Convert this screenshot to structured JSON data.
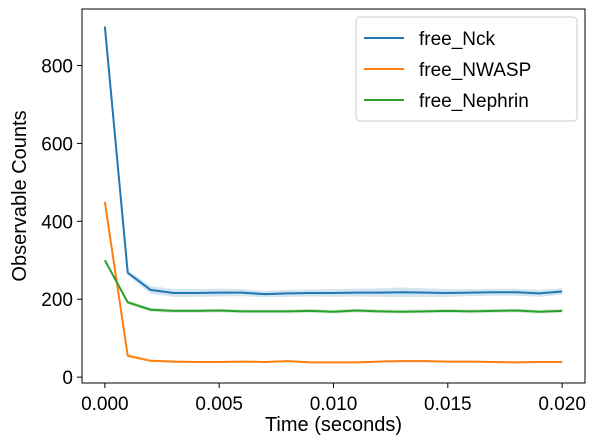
{
  "chart_data": {
    "type": "line",
    "title": "",
    "xlabel": "Time (seconds)",
    "ylabel": "Observable Counts",
    "xlim": [
      -0.001,
      0.021
    ],
    "ylim": [
      -15,
      945
    ],
    "xticks": [
      0.0,
      0.005,
      0.01,
      0.015,
      0.02
    ],
    "xtick_labels": [
      "0.000",
      "0.005",
      "0.010",
      "0.015",
      "0.020"
    ],
    "yticks": [
      0,
      200,
      400,
      600,
      800
    ],
    "ytick_labels": [
      "0",
      "200",
      "400",
      "600",
      "800"
    ],
    "grid": false,
    "legend_position": "top-right",
    "x": [
      0.0,
      0.001,
      0.002,
      0.003,
      0.004,
      0.005,
      0.006,
      0.007,
      0.008,
      0.009,
      0.01,
      0.011,
      0.012,
      0.013,
      0.014,
      0.015,
      0.016,
      0.017,
      0.018,
      0.019,
      0.02
    ],
    "series": [
      {
        "name": "free_Nck",
        "color": "#1f77b4",
        "values": [
          900,
          268,
          224,
          216,
          216,
          217,
          217,
          213,
          215,
          216,
          216,
          217,
          217,
          218,
          217,
          216,
          217,
          218,
          218,
          215,
          220
        ],
        "band": [
          10,
          6,
          10,
          10,
          10,
          10,
          9,
          8,
          9,
          9,
          10,
          10,
          11,
          12,
          11,
          10,
          9,
          9,
          9,
          9,
          8
        ]
      },
      {
        "name": "free_NWASP",
        "color": "#ff7f0e",
        "values": [
          450,
          55,
          42,
          40,
          39,
          39,
          40,
          39,
          41,
          38,
          38,
          38,
          40,
          41,
          41,
          40,
          40,
          39,
          38,
          39,
          39
        ],
        "band": [
          2,
          4,
          3,
          3,
          2,
          2,
          2,
          2,
          2,
          2,
          2,
          2,
          2,
          2,
          2,
          2,
          2,
          2,
          2,
          2,
          2
        ]
      },
      {
        "name": "free_Nephrin",
        "color": "#2ca02c",
        "values": [
          300,
          192,
          173,
          170,
          170,
          171,
          169,
          169,
          169,
          170,
          168,
          171,
          169,
          168,
          169,
          170,
          169,
          170,
          171,
          168,
          170
        ],
        "band": [
          2,
          5,
          5,
          5,
          5,
          5,
          5,
          5,
          5,
          5,
          5,
          5,
          5,
          5,
          5,
          5,
          5,
          5,
          5,
          5,
          5
        ]
      }
    ]
  }
}
